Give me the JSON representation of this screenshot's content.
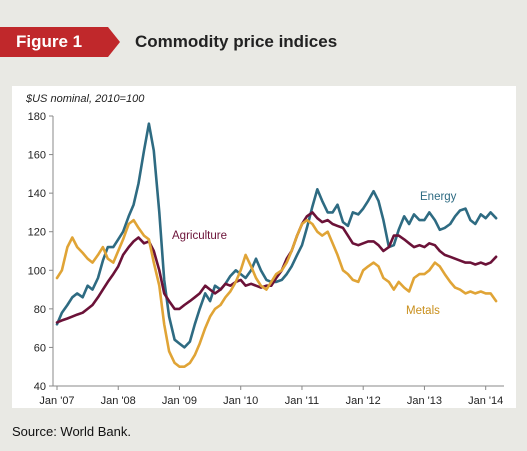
{
  "figure": {
    "label": "Figure 1",
    "title": "Commodity price indices"
  },
  "source": "Source: World Bank.",
  "colors": {
    "energy": "#2e6b82",
    "agriculture": "#6b1238",
    "metals": "#e0a436",
    "accent": "#c0282b"
  },
  "chart_data": {
    "type": "line",
    "unit_label": "$US nominal, 2010=100",
    "ylim": [
      40,
      180
    ],
    "yticks": [
      40,
      60,
      80,
      100,
      120,
      140,
      160,
      180
    ],
    "xlim": [
      2007,
      2014.25
    ],
    "xticks": [
      {
        "x": 2007,
        "label": "Jan '07"
      },
      {
        "x": 2008,
        "label": "Jan '08"
      },
      {
        "x": 2009,
        "label": "Jan '09"
      },
      {
        "x": 2010,
        "label": "Jan '10"
      },
      {
        "x": 2011,
        "label": "Jan '11"
      },
      {
        "x": 2012,
        "label": "Jan '12"
      },
      {
        "x": 2013,
        "label": "Jan '13"
      },
      {
        "x": 2014,
        "label": "Jan '14"
      }
    ],
    "series": [
      {
        "name": "Energy",
        "key": "energy",
        "points": [
          [
            2007.0,
            72
          ],
          [
            2007.08,
            78
          ],
          [
            2007.17,
            82
          ],
          [
            2007.25,
            86
          ],
          [
            2007.33,
            88
          ],
          [
            2007.42,
            86
          ],
          [
            2007.5,
            92
          ],
          [
            2007.58,
            90
          ],
          [
            2007.67,
            96
          ],
          [
            2007.75,
            105
          ],
          [
            2007.83,
            112
          ],
          [
            2007.92,
            112
          ],
          [
            2008.0,
            116
          ],
          [
            2008.08,
            120
          ],
          [
            2008.17,
            128
          ],
          [
            2008.25,
            134
          ],
          [
            2008.33,
            145
          ],
          [
            2008.42,
            162
          ],
          [
            2008.5,
            176
          ],
          [
            2008.58,
            162
          ],
          [
            2008.67,
            130
          ],
          [
            2008.75,
            95
          ],
          [
            2008.83,
            76
          ],
          [
            2008.92,
            64
          ],
          [
            2009.0,
            62
          ],
          [
            2009.08,
            60
          ],
          [
            2009.17,
            63
          ],
          [
            2009.25,
            72
          ],
          [
            2009.33,
            80
          ],
          [
            2009.42,
            88
          ],
          [
            2009.5,
            84
          ],
          [
            2009.58,
            92
          ],
          [
            2009.67,
            90
          ],
          [
            2009.75,
            93
          ],
          [
            2009.83,
            97
          ],
          [
            2009.92,
            100
          ],
          [
            2010.0,
            98
          ],
          [
            2010.08,
            96
          ],
          [
            2010.17,
            100
          ],
          [
            2010.25,
            106
          ],
          [
            2010.33,
            100
          ],
          [
            2010.42,
            95
          ],
          [
            2010.5,
            94
          ],
          [
            2010.58,
            94
          ],
          [
            2010.67,
            95
          ],
          [
            2010.75,
            98
          ],
          [
            2010.83,
            102
          ],
          [
            2010.92,
            108
          ],
          [
            2011.0,
            113
          ],
          [
            2011.08,
            122
          ],
          [
            2011.17,
            133
          ],
          [
            2011.25,
            142
          ],
          [
            2011.33,
            136
          ],
          [
            2011.42,
            130
          ],
          [
            2011.5,
            130
          ],
          [
            2011.58,
            134
          ],
          [
            2011.67,
            125
          ],
          [
            2011.75,
            123
          ],
          [
            2011.83,
            130
          ],
          [
            2011.92,
            129
          ],
          [
            2012.0,
            132
          ],
          [
            2012.08,
            136
          ],
          [
            2012.17,
            141
          ],
          [
            2012.25,
            136
          ],
          [
            2012.33,
            126
          ],
          [
            2012.42,
            112
          ],
          [
            2012.5,
            113
          ],
          [
            2012.58,
            121
          ],
          [
            2012.67,
            128
          ],
          [
            2012.75,
            124
          ],
          [
            2012.83,
            129
          ],
          [
            2012.92,
            126
          ],
          [
            2013.0,
            126
          ],
          [
            2013.08,
            130
          ],
          [
            2013.17,
            126
          ],
          [
            2013.25,
            121
          ],
          [
            2013.33,
            122
          ],
          [
            2013.42,
            124
          ],
          [
            2013.5,
            128
          ],
          [
            2013.58,
            131
          ],
          [
            2013.67,
            132
          ],
          [
            2013.75,
            126
          ],
          [
            2013.83,
            124
          ],
          [
            2013.92,
            129
          ],
          [
            2014.0,
            127
          ],
          [
            2014.08,
            130
          ],
          [
            2014.17,
            127
          ]
        ]
      },
      {
        "name": "Agriculture",
        "key": "agriculture",
        "points": [
          [
            2007.0,
            73
          ],
          [
            2007.08,
            74
          ],
          [
            2007.17,
            75
          ],
          [
            2007.25,
            76
          ],
          [
            2007.33,
            77
          ],
          [
            2007.42,
            78
          ],
          [
            2007.5,
            80
          ],
          [
            2007.58,
            82
          ],
          [
            2007.67,
            86
          ],
          [
            2007.75,
            90
          ],
          [
            2007.83,
            94
          ],
          [
            2007.92,
            98
          ],
          [
            2008.0,
            102
          ],
          [
            2008.08,
            108
          ],
          [
            2008.17,
            112
          ],
          [
            2008.25,
            115
          ],
          [
            2008.33,
            117
          ],
          [
            2008.42,
            114
          ],
          [
            2008.5,
            115
          ],
          [
            2008.58,
            110
          ],
          [
            2008.67,
            100
          ],
          [
            2008.75,
            88
          ],
          [
            2008.83,
            84
          ],
          [
            2008.92,
            80
          ],
          [
            2009.0,
            80
          ],
          [
            2009.08,
            82
          ],
          [
            2009.17,
            84
          ],
          [
            2009.25,
            86
          ],
          [
            2009.33,
            88
          ],
          [
            2009.42,
            92
          ],
          [
            2009.5,
            90
          ],
          [
            2009.58,
            88
          ],
          [
            2009.67,
            90
          ],
          [
            2009.75,
            93
          ],
          [
            2009.83,
            92
          ],
          [
            2009.92,
            94
          ],
          [
            2010.0,
            95
          ],
          [
            2010.08,
            92
          ],
          [
            2010.17,
            93
          ],
          [
            2010.25,
            92
          ],
          [
            2010.33,
            91
          ],
          [
            2010.42,
            92
          ],
          [
            2010.5,
            92
          ],
          [
            2010.58,
            96
          ],
          [
            2010.67,
            100
          ],
          [
            2010.75,
            106
          ],
          [
            2010.83,
            110
          ],
          [
            2010.92,
            118
          ],
          [
            2011.0,
            124
          ],
          [
            2011.08,
            128
          ],
          [
            2011.17,
            130
          ],
          [
            2011.25,
            127
          ],
          [
            2011.33,
            125
          ],
          [
            2011.42,
            126
          ],
          [
            2011.5,
            124
          ],
          [
            2011.58,
            123
          ],
          [
            2011.67,
            122
          ],
          [
            2011.75,
            118
          ],
          [
            2011.83,
            114
          ],
          [
            2011.92,
            113
          ],
          [
            2012.0,
            114
          ],
          [
            2012.08,
            115
          ],
          [
            2012.17,
            115
          ],
          [
            2012.25,
            113
          ],
          [
            2012.33,
            110
          ],
          [
            2012.42,
            112
          ],
          [
            2012.5,
            118
          ],
          [
            2012.58,
            118
          ],
          [
            2012.67,
            116
          ],
          [
            2012.75,
            114
          ],
          [
            2012.83,
            112
          ],
          [
            2012.92,
            113
          ],
          [
            2013.0,
            112
          ],
          [
            2013.08,
            114
          ],
          [
            2013.17,
            113
          ],
          [
            2013.25,
            110
          ],
          [
            2013.33,
            108
          ],
          [
            2013.42,
            107
          ],
          [
            2013.5,
            106
          ],
          [
            2013.58,
            105
          ],
          [
            2013.67,
            104
          ],
          [
            2013.75,
            104
          ],
          [
            2013.83,
            103
          ],
          [
            2013.92,
            104
          ],
          [
            2014.0,
            103
          ],
          [
            2014.08,
            104
          ],
          [
            2014.17,
            107
          ]
        ]
      },
      {
        "name": "Metals",
        "key": "metals",
        "points": [
          [
            2007.0,
            96
          ],
          [
            2007.08,
            100
          ],
          [
            2007.17,
            112
          ],
          [
            2007.25,
            117
          ],
          [
            2007.33,
            112
          ],
          [
            2007.42,
            109
          ],
          [
            2007.5,
            106
          ],
          [
            2007.58,
            104
          ],
          [
            2007.67,
            108
          ],
          [
            2007.75,
            112
          ],
          [
            2007.83,
            106
          ],
          [
            2007.92,
            104
          ],
          [
            2008.0,
            110
          ],
          [
            2008.08,
            116
          ],
          [
            2008.17,
            124
          ],
          [
            2008.25,
            126
          ],
          [
            2008.33,
            122
          ],
          [
            2008.42,
            118
          ],
          [
            2008.5,
            116
          ],
          [
            2008.58,
            104
          ],
          [
            2008.67,
            92
          ],
          [
            2008.75,
            72
          ],
          [
            2008.83,
            58
          ],
          [
            2008.92,
            52
          ],
          [
            2009.0,
            50
          ],
          [
            2009.08,
            50
          ],
          [
            2009.17,
            52
          ],
          [
            2009.25,
            56
          ],
          [
            2009.33,
            62
          ],
          [
            2009.42,
            70
          ],
          [
            2009.5,
            76
          ],
          [
            2009.58,
            80
          ],
          [
            2009.67,
            82
          ],
          [
            2009.75,
            86
          ],
          [
            2009.83,
            89
          ],
          [
            2009.92,
            94
          ],
          [
            2010.0,
            100
          ],
          [
            2010.08,
            108
          ],
          [
            2010.17,
            102
          ],
          [
            2010.25,
            96
          ],
          [
            2010.33,
            92
          ],
          [
            2010.42,
            90
          ],
          [
            2010.5,
            94
          ],
          [
            2010.58,
            98
          ],
          [
            2010.67,
            100
          ],
          [
            2010.75,
            104
          ],
          [
            2010.83,
            110
          ],
          [
            2010.92,
            118
          ],
          [
            2011.0,
            124
          ],
          [
            2011.08,
            126
          ],
          [
            2011.17,
            124
          ],
          [
            2011.25,
            120
          ],
          [
            2011.33,
            118
          ],
          [
            2011.42,
            120
          ],
          [
            2011.5,
            114
          ],
          [
            2011.58,
            108
          ],
          [
            2011.67,
            100
          ],
          [
            2011.75,
            98
          ],
          [
            2011.83,
            95
          ],
          [
            2011.92,
            94
          ],
          [
            2012.0,
            100
          ],
          [
            2012.08,
            102
          ],
          [
            2012.17,
            104
          ],
          [
            2012.25,
            102
          ],
          [
            2012.33,
            96
          ],
          [
            2012.42,
            94
          ],
          [
            2012.5,
            90
          ],
          [
            2012.58,
            94
          ],
          [
            2012.67,
            91
          ],
          [
            2012.75,
            89
          ],
          [
            2012.83,
            96
          ],
          [
            2012.92,
            98
          ],
          [
            2013.0,
            98
          ],
          [
            2013.08,
            100
          ],
          [
            2013.17,
            104
          ],
          [
            2013.25,
            102
          ],
          [
            2013.33,
            98
          ],
          [
            2013.42,
            94
          ],
          [
            2013.5,
            91
          ],
          [
            2013.58,
            90
          ],
          [
            2013.67,
            88
          ],
          [
            2013.75,
            89
          ],
          [
            2013.83,
            88
          ],
          [
            2013.92,
            89
          ],
          [
            2014.0,
            88
          ],
          [
            2014.08,
            88
          ],
          [
            2014.17,
            84
          ]
        ]
      }
    ]
  }
}
